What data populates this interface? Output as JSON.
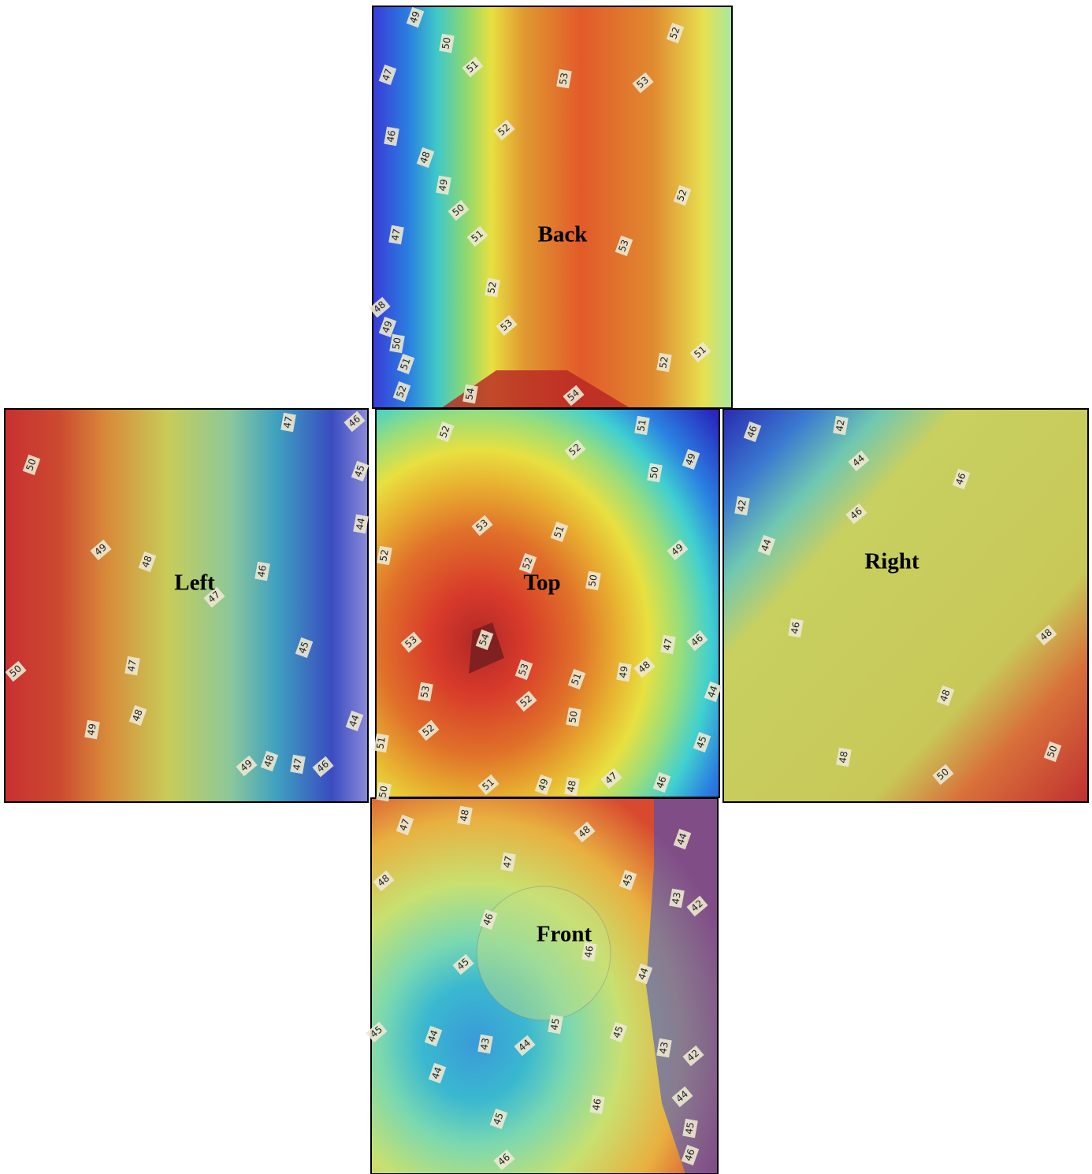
{
  "panels": [
    {
      "name": "Back",
      "contour_labels": [
        49,
        50,
        51,
        47,
        53,
        53,
        52,
        46,
        52,
        48,
        49,
        50,
        52,
        47,
        51,
        53,
        52,
        48,
        49,
        50,
        53,
        51,
        52,
        51,
        52,
        54,
        54
      ]
    },
    {
      "name": "Left",
      "contour_labels": [
        50,
        47,
        46,
        45,
        44,
        49,
        48,
        46,
        47,
        45,
        47,
        50,
        48,
        49,
        49,
        48,
        47,
        46,
        44
      ]
    },
    {
      "name": "Top",
      "contour_labels": [
        52,
        51,
        52,
        49,
        50,
        53,
        51,
        52,
        49,
        52,
        50,
        53,
        54,
        47,
        46,
        53,
        49,
        48,
        51,
        53,
        52,
        44,
        50,
        52,
        45,
        51,
        51,
        49,
        48,
        47,
        46,
        50
      ]
    },
    {
      "name": "Right",
      "contour_labels": [
        46,
        42,
        44,
        46,
        42,
        46,
        44,
        46,
        48,
        48,
        48,
        50,
        50
      ]
    },
    {
      "name": "Front",
      "contour_labels": [
        47,
        48,
        48,
        44,
        47,
        48,
        45,
        43,
        42,
        46,
        46,
        45,
        44,
        45,
        45,
        44,
        43,
        44,
        45,
        43,
        42,
        44,
        46,
        44,
        45,
        45,
        46,
        46
      ]
    }
  ]
}
